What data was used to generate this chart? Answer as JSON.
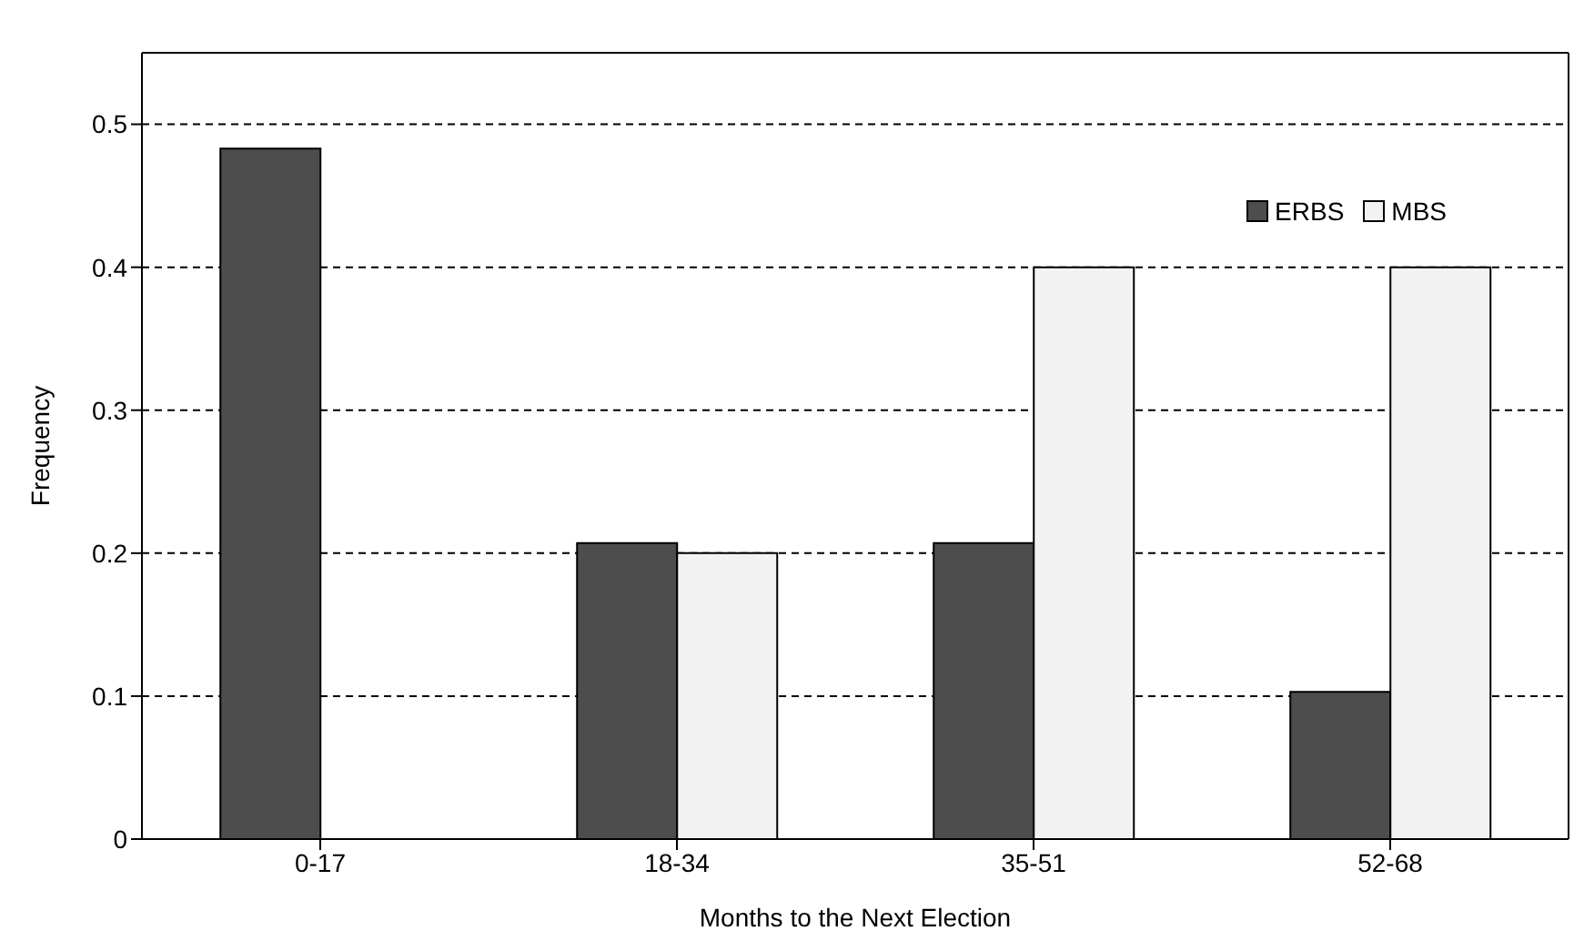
{
  "chart_data": {
    "type": "bar",
    "xlabel": "Months to the Next Election",
    "ylabel": "Frequency",
    "categories": [
      "0-17",
      "18-34",
      "35-51",
      "52-68"
    ],
    "series": [
      {
        "name": "ERBS",
        "color": "#4d4d4d",
        "values": [
          0.483,
          0.207,
          0.207,
          0.103
        ]
      },
      {
        "name": "MBS",
        "color": "#f2f2f2",
        "values": [
          0,
          0.2,
          0.4,
          0.4
        ]
      }
    ],
    "ylim": [
      0,
      0.55
    ],
    "yticks": [
      0,
      0.1,
      0.2,
      0.3,
      0.4,
      0.5
    ],
    "grid": "y",
    "legend": "top right"
  }
}
